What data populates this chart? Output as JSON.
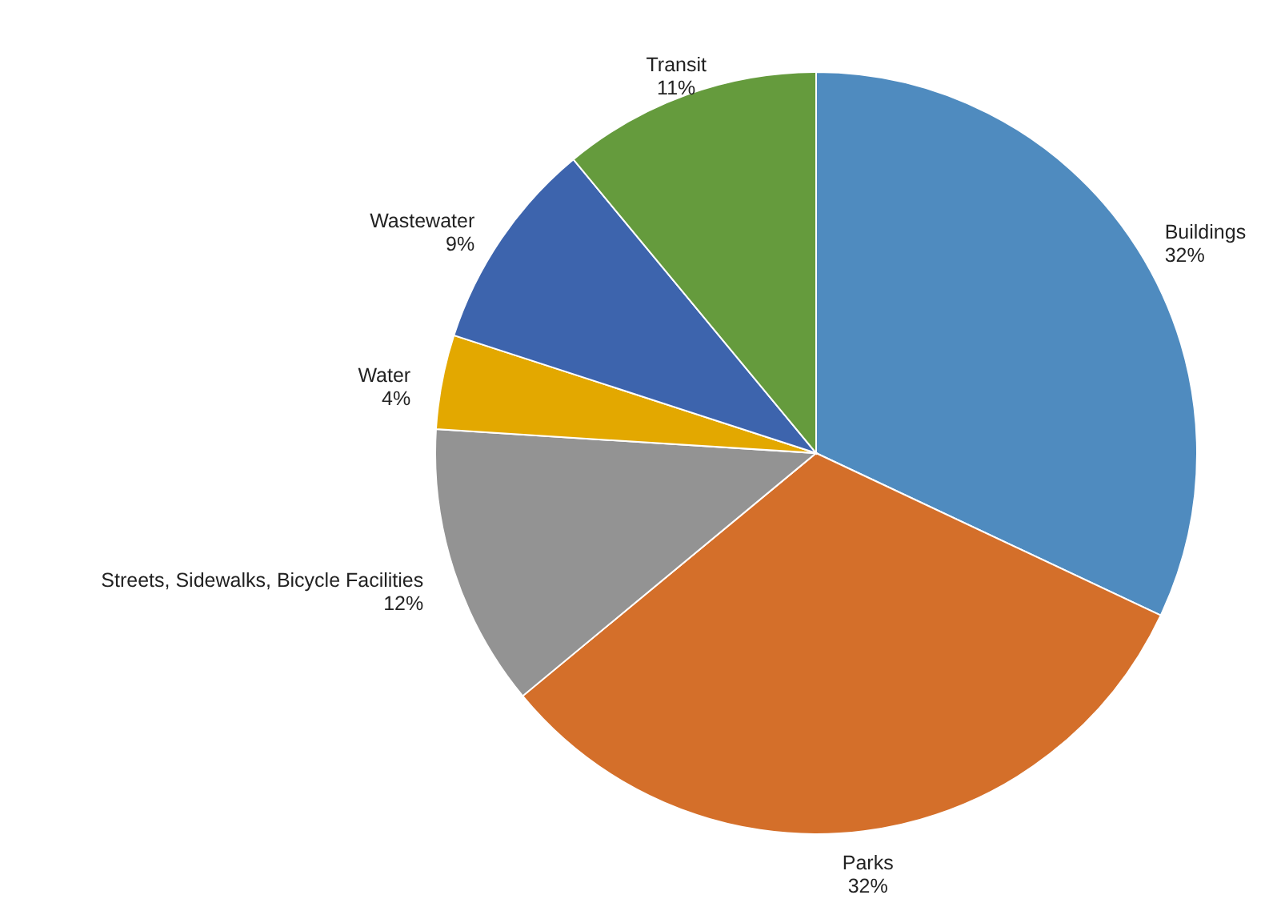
{
  "chart_data": {
    "type": "pie",
    "categories": [
      "Buildings",
      "Parks",
      "Streets, Sidewalks, Bicycle Facilities",
      "Water",
      "Wastewater",
      "Transit"
    ],
    "values": [
      32,
      32,
      12,
      4,
      9,
      11
    ],
    "value_labels": [
      "32%",
      "32%",
      "12%",
      "4%",
      "9%",
      "11%"
    ],
    "colors": [
      "#4f8bbf",
      "#d46f2a",
      "#939393",
      "#e3a800",
      "#3d64ad",
      "#659b3d"
    ]
  }
}
